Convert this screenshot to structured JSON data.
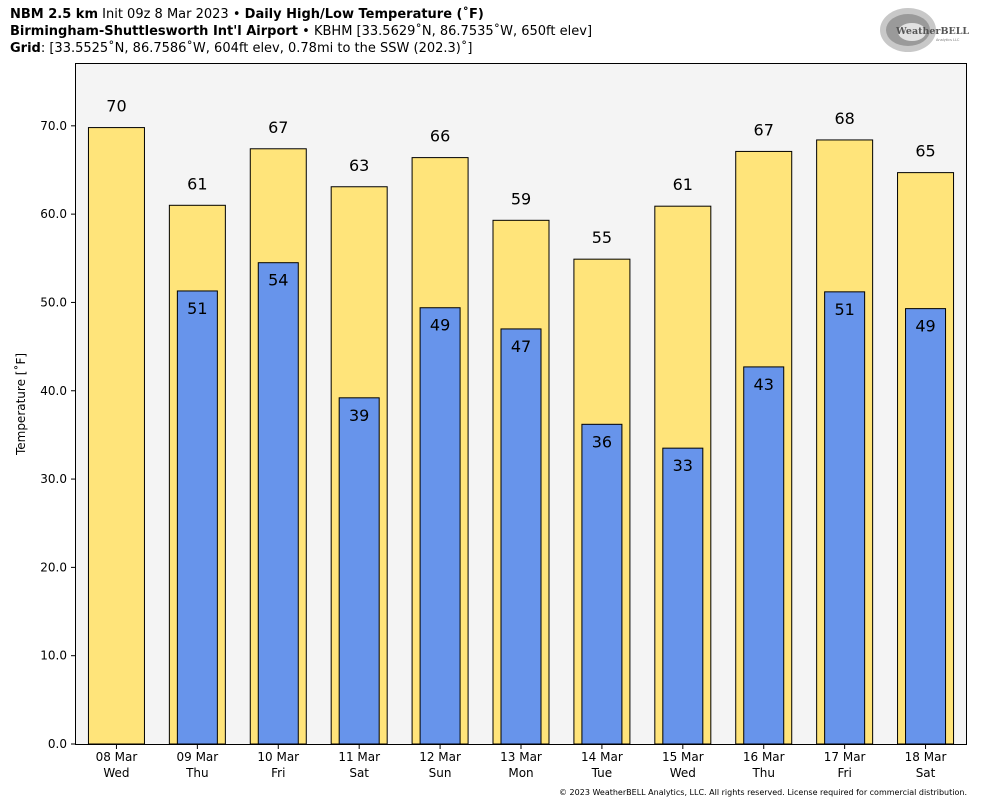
{
  "header": {
    "line1_model": "NBM 2.5 km",
    "line1_init": "Init 09z 8 Mar 2023",
    "line1_sep": "•",
    "line1_title": "Daily High/Low Temperature (˚F)",
    "line2_station": "Birmingham-Shuttlesworth Int'l Airport",
    "line2_sep": "•",
    "line2_detail": "KBHM [33.5629˚N, 86.7535˚W, 650ft elev]",
    "line3_label": "Grid",
    "line3_detail": ": [33.5525˚N, 86.7586˚W, 604ft elev, 0.78mi to the SSW (202.3)˚]"
  },
  "logo": {
    "text": "WeatherBELL",
    "subtext": "Analytics LLC"
  },
  "copyright": "© 2023 WeatherBELL Analytics, LLC. All rights reserved. License required for commercial distribution.",
  "chart_data": {
    "type": "bar",
    "ylabel": "Temperature [˚F]",
    "ylim": [
      0,
      77
    ],
    "yticks": [
      "0.0",
      "10.0",
      "20.0",
      "30.0",
      "40.0",
      "50.0",
      "60.0",
      "70.0"
    ],
    "categories": [
      [
        "08 Mar",
        "Wed"
      ],
      [
        "09 Mar",
        "Thu"
      ],
      [
        "10 Mar",
        "Fri"
      ],
      [
        "11 Mar",
        "Sat"
      ],
      [
        "12 Mar",
        "Sun"
      ],
      [
        "13 Mar",
        "Mon"
      ],
      [
        "14 Mar",
        "Tue"
      ],
      [
        "15 Mar",
        "Wed"
      ],
      [
        "16 Mar",
        "Thu"
      ],
      [
        "17 Mar",
        "Fri"
      ],
      [
        "18 Mar",
        "Sat"
      ]
    ],
    "series": [
      {
        "values": [
          69.8,
          61.0,
          67.4,
          63.1,
          66.4,
          59.3,
          54.9,
          60.9,
          67.1,
          68.4,
          64.7
        ],
        "labels": [
          "70",
          "61",
          "67",
          "63",
          "66",
          "59",
          "55",
          "61",
          "67",
          "68",
          "65"
        ],
        "color": "#ffe47a"
      },
      {
        "values": [
          null,
          51.3,
          54.5,
          39.2,
          49.4,
          47.0,
          36.2,
          33.5,
          42.7,
          51.2,
          49.3
        ],
        "labels": [
          "",
          "51",
          "54",
          "39",
          "49",
          "47",
          "36",
          "33",
          "43",
          "51",
          "49"
        ],
        "color": "#6794eb"
      }
    ],
    "plot_background": "#f4f4f4",
    "grid": false
  }
}
